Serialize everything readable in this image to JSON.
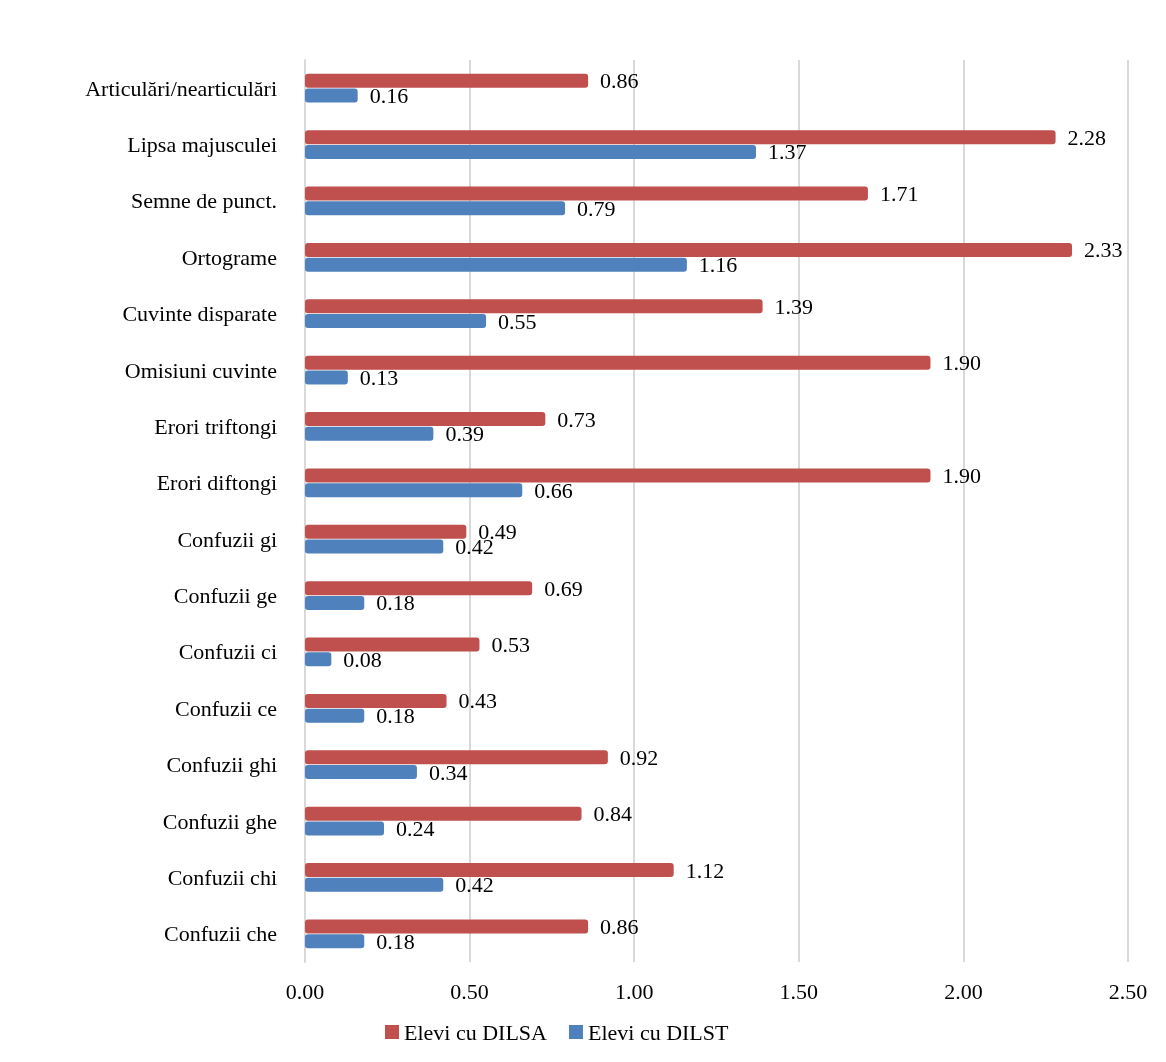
{
  "chart_data": {
    "type": "bar",
    "orientation": "horizontal",
    "categories": [
      "Articulări/nearticulări",
      "Lipsa majusculei",
      "Semne de punct.",
      "Ortograme",
      "Cuvinte disparate",
      "Omisiuni cuvinte",
      "Erori triftongi",
      "Erori diftongi",
      "Confuzii gi",
      "Confuzii ge",
      "Confuzii ci",
      "Confuzii ce",
      "Confuzii ghi",
      "Confuzii ghe",
      "Confuzii chi",
      "Confuzii che"
    ],
    "series": [
      {
        "name": "Elevi cu DILSA",
        "color": "#c0504d",
        "values": [
          0.86,
          2.28,
          1.71,
          2.33,
          1.39,
          1.9,
          0.73,
          1.9,
          0.49,
          0.69,
          0.53,
          0.43,
          0.92,
          0.84,
          1.12,
          0.86
        ],
        "value_labels": [
          "0.86",
          "2.28",
          "1.71",
          "2.33",
          "1.39",
          "1.90",
          "0.73",
          "1.90",
          "0.49",
          "0.69",
          "0.53",
          "0.43",
          "0.92",
          "0.84",
          "1.12",
          "0.86"
        ]
      },
      {
        "name": "Elevi cu DILST",
        "color": "#4f81bd",
        "values": [
          0.16,
          1.37,
          0.79,
          1.16,
          0.55,
          0.13,
          0.39,
          0.66,
          0.42,
          0.18,
          0.08,
          0.18,
          0.34,
          0.24,
          0.42,
          0.18
        ],
        "value_labels": [
          "0.16",
          "1.37",
          "0.79",
          "1.16",
          "0.55",
          "0.13",
          "0.39",
          "0.66",
          "0.42",
          "0.18",
          "0.08",
          "0.18",
          "0.34",
          "0.24",
          "0.42",
          "0.18"
        ]
      }
    ],
    "xlim": [
      0,
      2.5
    ],
    "xticks": [
      {
        "value": 0,
        "label": "0.00"
      },
      {
        "value": 0.5,
        "label": "0.50"
      },
      {
        "value": 1,
        "label": "1.00"
      },
      {
        "value": 1.5,
        "label": "1.50"
      },
      {
        "value": 2,
        "label": "2.00"
      },
      {
        "value": 2.5,
        "label": "2.50"
      }
    ],
    "grid": "x",
    "legend": "bottom"
  }
}
